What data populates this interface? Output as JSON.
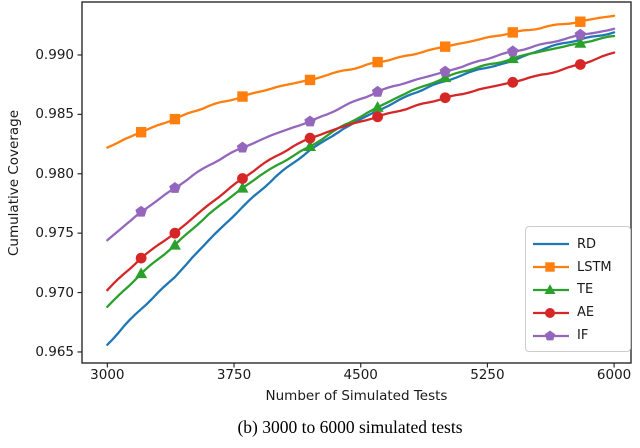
{
  "caption": "(b) 3000 to 6000 simulated tests",
  "chart_data": {
    "type": "line",
    "title": "",
    "xlabel": "Number of Simulated Tests",
    "ylabel": "Cumulative Coverage",
    "x_start": 3000,
    "x_step": 100,
    "x_end": 6000,
    "xlim": [
      2850,
      6100
    ],
    "ylim": [
      0.96407,
      0.99446
    ],
    "xticks": [
      3000,
      3750,
      4500,
      5250,
      6000
    ],
    "xtick_labels": [
      "3000",
      "3750",
      "4500",
      "5250",
      "6000"
    ],
    "yticks": [
      0.965,
      0.97,
      0.975,
      0.98,
      0.985,
      0.99
    ],
    "ytick_labels": [
      "0.965",
      "0.970",
      "0.975",
      "0.980",
      "0.985",
      "0.990"
    ],
    "grid": false,
    "legend_position": "lower right",
    "marker_x": [
      3200,
      3400,
      3800,
      4200,
      4600,
      5000,
      5400,
      5800
    ],
    "series": [
      {
        "name": "RD",
        "color": "#1f77b4",
        "marker": "none",
        "values": [
          0.9656,
          0.9672,
          0.9686,
          0.97,
          0.9713,
          0.9729,
          0.9744,
          0.9758,
          0.9772,
          0.9785,
          0.9798,
          0.9809,
          0.982,
          0.9829,
          0.9838,
          0.9846,
          0.9853,
          0.986,
          0.9867,
          0.9873,
          0.9878,
          0.9883,
          0.9888,
          0.9891,
          0.9895,
          0.9901,
          0.9906,
          0.991,
          0.9913,
          0.9916,
          0.9919
        ]
      },
      {
        "name": "LSTM",
        "color": "#ff7f0e",
        "marker": "square",
        "values": [
          0.9822,
          0.9829,
          0.9835,
          0.9841,
          0.9846,
          0.9852,
          0.9857,
          0.9861,
          0.9865,
          0.9869,
          0.9873,
          0.9876,
          0.9879,
          0.9883,
          0.9887,
          0.989,
          0.9894,
          0.9897,
          0.99,
          0.9904,
          0.9907,
          0.991,
          0.9913,
          0.9916,
          0.9919,
          0.9921,
          0.9924,
          0.9926,
          0.9928,
          0.9931,
          0.9933
        ]
      },
      {
        "name": "TE",
        "color": "#2ca02c",
        "marker": "triangle",
        "values": [
          0.9688,
          0.9702,
          0.9716,
          0.9728,
          0.974,
          0.9753,
          0.9766,
          0.9777,
          0.9788,
          0.9798,
          0.9807,
          0.9815,
          0.9823,
          0.9832,
          0.9841,
          0.9848,
          0.9856,
          0.9863,
          0.987,
          0.9875,
          0.9881,
          0.9886,
          0.989,
          0.9893,
          0.9897,
          0.9901,
          0.9904,
          0.9907,
          0.991,
          0.9913,
          0.9916
        ]
      },
      {
        "name": "AE",
        "color": "#d62728",
        "marker": "circle",
        "values": [
          0.9702,
          0.9716,
          0.9729,
          0.974,
          0.975,
          0.9762,
          0.9774,
          0.9785,
          0.9796,
          0.9806,
          0.9815,
          0.9823,
          0.983,
          0.9835,
          0.984,
          0.9844,
          0.9848,
          0.9852,
          0.9856,
          0.986,
          0.9864,
          0.9867,
          0.9871,
          0.9874,
          0.9877,
          0.9881,
          0.9884,
          0.9888,
          0.9892,
          0.9897,
          0.9902
        ]
      },
      {
        "name": "IF",
        "color": "#9467bd",
        "marker": "pentagon",
        "values": [
          0.9744,
          0.9756,
          0.9768,
          0.9778,
          0.9788,
          0.9798,
          0.9807,
          0.9815,
          0.9822,
          0.9828,
          0.9834,
          0.9839,
          0.9844,
          0.985,
          0.9857,
          0.9863,
          0.9869,
          0.9874,
          0.9878,
          0.9882,
          0.9886,
          0.989,
          0.9895,
          0.9899,
          0.9903,
          0.9906,
          0.991,
          0.9913,
          0.9917,
          0.9919,
          0.9922
        ]
      }
    ]
  }
}
